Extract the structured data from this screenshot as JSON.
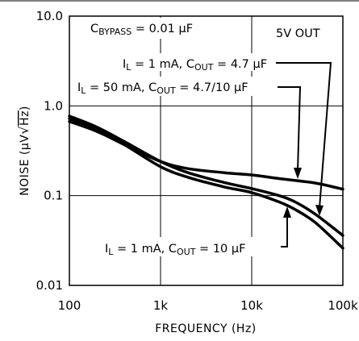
{
  "chart_data": {
    "type": "line",
    "xscale": "log",
    "yscale": "log",
    "xlim": [
      100,
      100000
    ],
    "ylim": [
      0.01,
      10
    ],
    "xlabel": "FREQUENCY (Hz)",
    "ylabel": {
      "pre": "NOISE (",
      "mid": "μV",
      "sqrt": "Hz",
      "post": ")"
    },
    "xticks": [
      {
        "value": 100,
        "label": "100"
      },
      {
        "value": 1000,
        "label": "1k"
      },
      {
        "value": 10000,
        "label": "10k"
      },
      {
        "value": 100000,
        "label": "100k"
      }
    ],
    "yticks": [
      {
        "value": 10,
        "label": "10.0"
      },
      {
        "value": 1,
        "label": "1.0"
      },
      {
        "value": 0.1,
        "label": "0.1"
      },
      {
        "value": 0.01,
        "label": "0.01"
      }
    ],
    "grid": true,
    "series": [
      {
        "label": {
          "pre": "I",
          "pre_sub": "L",
          "mid": " = 50 mA, C",
          "mid_sub": "OUT",
          "post": " = 4.7/10 μF"
        },
        "x": [
          100,
          200,
          400,
          1000,
          2000,
          5000,
          10000,
          20000,
          50000,
          100000
        ],
        "y": [
          0.67,
          0.52,
          0.37,
          0.24,
          0.2,
          0.18,
          0.17,
          0.155,
          0.138,
          0.118
        ]
      },
      {
        "label": {
          "pre": "I",
          "pre_sub": "L",
          "mid": " = 1 mA, C",
          "mid_sub": "OUT",
          "post": " = 4.7 μF"
        },
        "x": [
          100,
          200,
          400,
          1000,
          2000,
          5000,
          10000,
          20000,
          30000,
          50000,
          100000
        ],
        "y": [
          0.77,
          0.58,
          0.4,
          0.24,
          0.18,
          0.14,
          0.12,
          0.1,
          0.085,
          0.062,
          0.036
        ]
      },
      {
        "label": {
          "pre": "I",
          "pre_sub": "L",
          "mid": " = 1 mA, C",
          "mid_sub": "OUT",
          "post": " = 10 μF"
        },
        "x": [
          100,
          200,
          400,
          1000,
          2000,
          5000,
          10000,
          20000,
          30000,
          50000,
          100000
        ],
        "y": [
          0.72,
          0.54,
          0.37,
          0.21,
          0.16,
          0.125,
          0.108,
          0.085,
          0.07,
          0.05,
          0.026
        ]
      }
    ],
    "annotations": {
      "bypass": {
        "pre": "C",
        "sub": "BYPASS",
        "post": " = 0.01 μF"
      },
      "output": "5V OUT"
    }
  }
}
